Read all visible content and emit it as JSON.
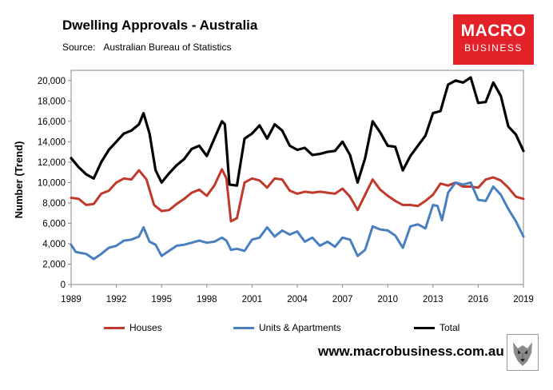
{
  "header": {
    "title": "Dwelling Approvals - Australia",
    "source_label": "Source:",
    "source_value": "Australian Bureau of Statistics"
  },
  "logo": {
    "line1": "MACRO",
    "line2": "BUSINESS"
  },
  "footer": {
    "website": "www.macrobusiness.com.au"
  },
  "colors": {
    "houses": "#c0392b",
    "units": "#4a7fbf",
    "total": "#000000",
    "logo_bg": "#e22128"
  },
  "chart_data": {
    "type": "line",
    "ylabel": "Number (Trend)",
    "xlabel": "",
    "ylim": [
      0,
      21000
    ],
    "xlim": [
      1989.0,
      2019.0
    ],
    "y_ticks": [
      0,
      2000,
      4000,
      6000,
      8000,
      10000,
      12000,
      14000,
      16000,
      18000,
      20000
    ],
    "y_tick_labels": [
      "0",
      "2,000",
      "4,000",
      "6,000",
      "8,000",
      "10,000",
      "12,000",
      "14,000",
      "16,000",
      "18,000",
      "20,000"
    ],
    "x_ticks": [
      1989,
      1992,
      1995,
      1998,
      2001,
      2004,
      2007,
      2010,
      2013,
      2016,
      2019
    ],
    "x_tick_labels": [
      "1989",
      "1992",
      "1995",
      "1998",
      "2001",
      "2004",
      "2007",
      "2010",
      "2013",
      "2016",
      "2019"
    ],
    "legend_position": "bottom",
    "series": [
      {
        "name": "Houses",
        "x": [
          1989.0,
          1989.5,
          1990.0,
          1990.5,
          1991.0,
          1991.5,
          1992.0,
          1992.5,
          1993.0,
          1993.5,
          1994.0,
          1994.5,
          1995.0,
          1995.5,
          1996.0,
          1996.5,
          1997.0,
          1997.5,
          1998.0,
          1998.5,
          1999.0,
          1999.3,
          1999.6,
          2000.0,
          2000.5,
          2001.0,
          2001.5,
          2002.0,
          2002.5,
          2003.0,
          2003.5,
          2004.0,
          2004.5,
          2005.0,
          2005.5,
          2006.0,
          2006.5,
          2007.0,
          2007.5,
          2008.0,
          2008.5,
          2009.0,
          2009.5,
          2010.0,
          2010.5,
          2011.0,
          2011.5,
          2012.0,
          2012.5,
          2013.0,
          2013.5,
          2014.0,
          2014.5,
          2015.0,
          2015.5,
          2016.0,
          2016.5,
          2017.0,
          2017.5,
          2018.0,
          2018.5,
          2019.0
        ],
        "values": [
          8500,
          8400,
          7800,
          7900,
          8900,
          9200,
          10000,
          10400,
          10300,
          11200,
          10300,
          7800,
          7200,
          7300,
          7900,
          8400,
          9000,
          9300,
          8700,
          9700,
          11300,
          10400,
          6200,
          6500,
          10000,
          10400,
          10200,
          9500,
          10400,
          10300,
          9200,
          8900,
          9100,
          9000,
          9100,
          9000,
          8900,
          9400,
          8600,
          7300,
          8800,
          10300,
          9300,
          8700,
          8200,
          7800,
          7800,
          7700,
          8200,
          8800,
          9900,
          9700,
          10000,
          9600,
          9600,
          9500,
          10300,
          10500,
          10200,
          9500,
          8600,
          8400
        ]
      },
      {
        "name": "Units & Apartments",
        "x": [
          1989.0,
          1989.3,
          1989.6,
          1990.0,
          1990.5,
          1991.0,
          1991.5,
          1992.0,
          1992.5,
          1993.0,
          1993.5,
          1993.8,
          1994.2,
          1994.6,
          1995.0,
          1995.5,
          1996.0,
          1996.5,
          1997.0,
          1997.5,
          1998.0,
          1998.5,
          1999.0,
          1999.3,
          1999.6,
          2000.0,
          2000.5,
          2001.0,
          2001.5,
          2002.0,
          2002.5,
          2003.0,
          2003.5,
          2004.0,
          2004.5,
          2005.0,
          2005.5,
          2006.0,
          2006.5,
          2007.0,
          2007.5,
          2008.0,
          2008.5,
          2009.0,
          2009.5,
          2010.0,
          2010.5,
          2011.0,
          2011.5,
          2012.0,
          2012.5,
          2013.0,
          2013.3,
          2013.6,
          2014.0,
          2014.5,
          2015.0,
          2015.5,
          2016.0,
          2016.5,
          2017.0,
          2017.5,
          2018.0,
          2018.5,
          2019.0
        ],
        "values": [
          3900,
          3200,
          3100,
          3000,
          2500,
          3000,
          3600,
          3800,
          4300,
          4400,
          4700,
          5600,
          4200,
          3900,
          2800,
          3300,
          3800,
          3900,
          4100,
          4300,
          4100,
          4200,
          4600,
          4300,
          3400,
          3500,
          3300,
          4400,
          4600,
          5600,
          4700,
          5300,
          4900,
          5200,
          4200,
          4600,
          3800,
          4200,
          3700,
          4600,
          4400,
          2800,
          3400,
          5700,
          5400,
          5300,
          4800,
          3600,
          5700,
          5900,
          5500,
          7800,
          7700,
          6300,
          9000,
          10000,
          9800,
          10000,
          8300,
          8200,
          9600,
          8800,
          7400,
          6200,
          4700
        ]
      },
      {
        "name": "Total",
        "x": [
          1989.0,
          1989.5,
          1990.0,
          1990.5,
          1991.0,
          1991.5,
          1992.0,
          1992.5,
          1993.0,
          1993.5,
          1993.8,
          1994.2,
          1994.6,
          1995.0,
          1995.5,
          1996.0,
          1996.5,
          1997.0,
          1997.5,
          1998.0,
          1998.5,
          1999.0,
          1999.2,
          1999.5,
          2000.0,
          2000.5,
          2001.0,
          2001.5,
          2002.0,
          2002.5,
          2003.0,
          2003.5,
          2004.0,
          2004.5,
          2005.0,
          2005.5,
          2006.0,
          2006.5,
          2007.0,
          2007.5,
          2008.0,
          2008.5,
          2009.0,
          2009.5,
          2010.0,
          2010.5,
          2011.0,
          2011.5,
          2012.0,
          2012.5,
          2013.0,
          2013.5,
          2014.0,
          2014.5,
          2015.0,
          2015.5,
          2016.0,
          2016.5,
          2017.0,
          2017.5,
          2018.0,
          2018.5,
          2019.0
        ],
        "values": [
          12400,
          11500,
          10800,
          10400,
          12000,
          13200,
          14000,
          14800,
          15100,
          15700,
          16800,
          14800,
          11200,
          10000,
          10900,
          11700,
          12300,
          13300,
          13600,
          12600,
          14300,
          16000,
          15700,
          9800,
          9700,
          14300,
          14800,
          15600,
          14300,
          15700,
          15100,
          13600,
          13200,
          13400,
          12700,
          12800,
          13000,
          13100,
          14000,
          12700,
          10000,
          12400,
          16000,
          14900,
          13600,
          13500,
          11200,
          12600,
          13600,
          14600,
          16800,
          17000,
          19600,
          20000,
          19800,
          20300,
          17800,
          17900,
          19800,
          18500,
          15500,
          14700,
          13100
        ]
      }
    ]
  }
}
